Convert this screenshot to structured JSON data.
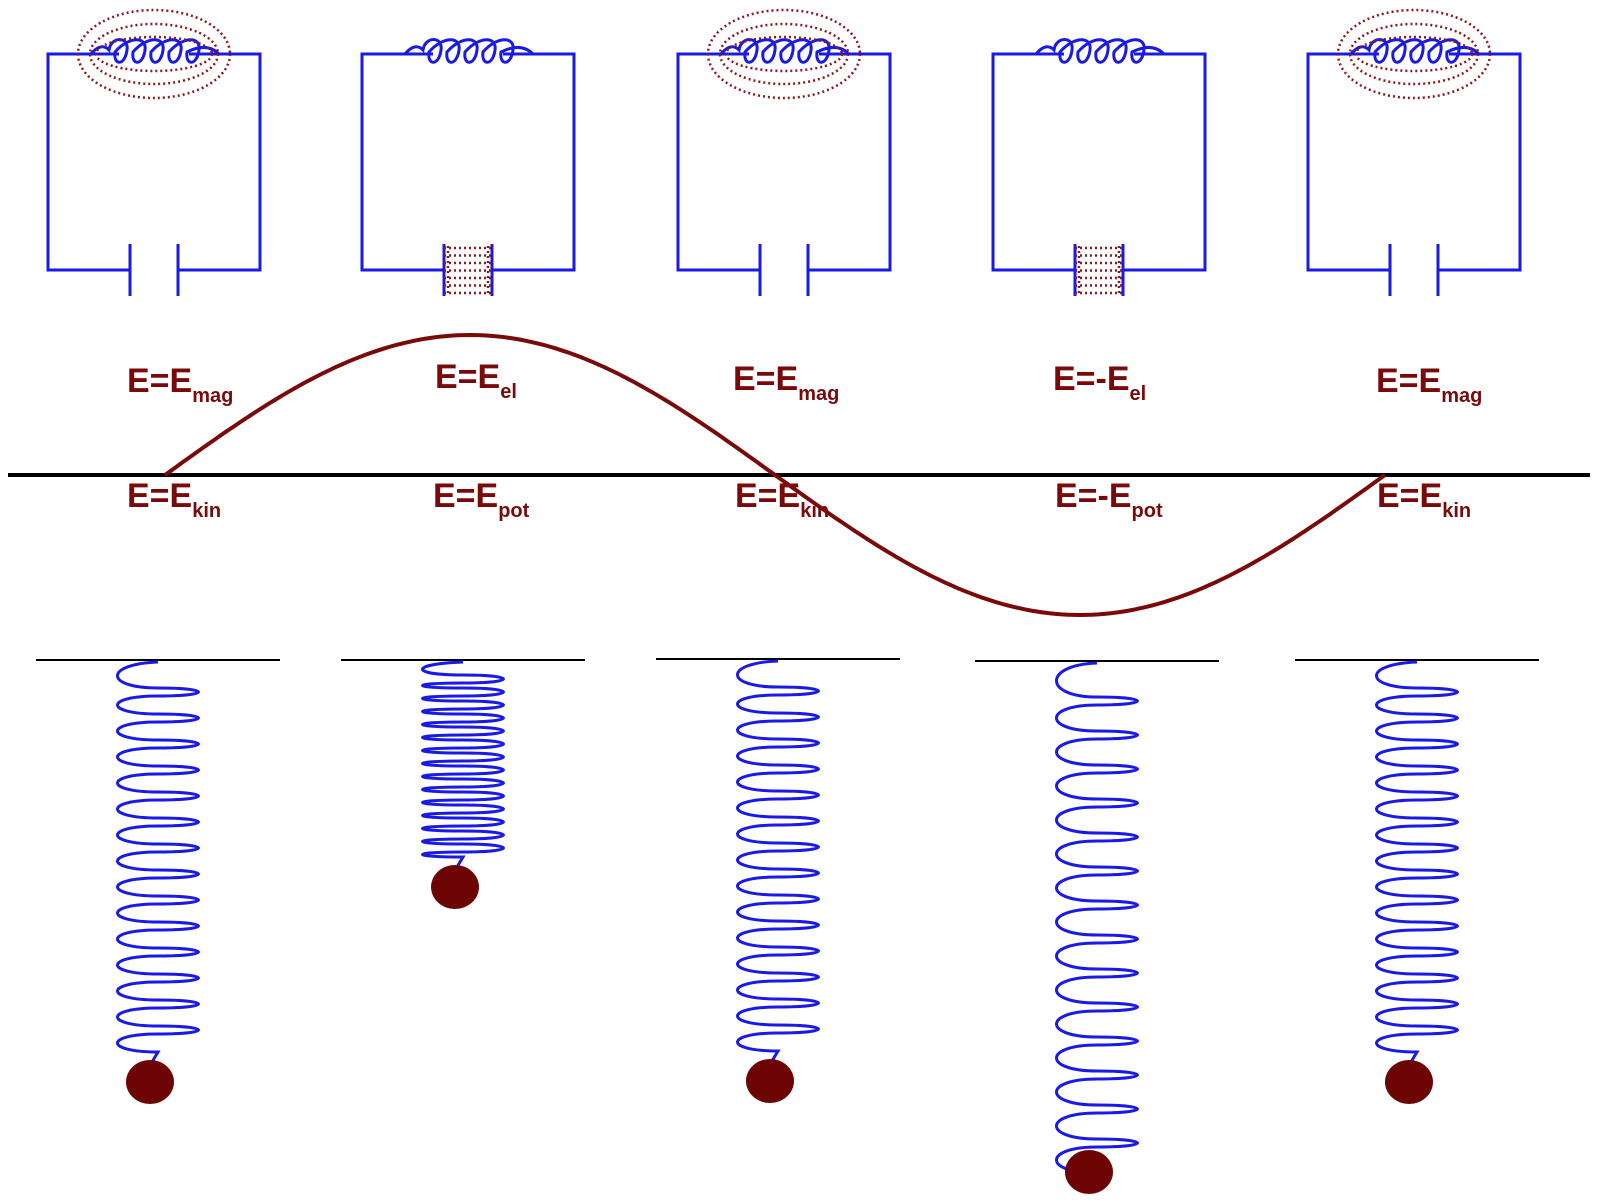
{
  "colors": {
    "wire": "#1a1ae6",
    "field": "#8b1a1a",
    "wave": "#7a0a0a",
    "label": "#7a0a0a",
    "mass": "#6e0505",
    "axis": "#000000"
  },
  "phases": [
    {
      "circuit_state": "current-max",
      "magnetic_field_shown": true,
      "electric_field_shown": false,
      "upper_label": {
        "main": "E=E",
        "sub": "mag"
      },
      "lower_label": {
        "main": "E=E",
        "sub": "kin"
      },
      "spring_state": "equilibrium"
    },
    {
      "circuit_state": "capacitor-charged",
      "magnetic_field_shown": false,
      "electric_field_shown": true,
      "upper_label": {
        "main": "E=E",
        "sub": "el"
      },
      "lower_label": {
        "main": "E=E",
        "sub": "pot"
      },
      "spring_state": "compressed"
    },
    {
      "circuit_state": "current-max",
      "magnetic_field_shown": true,
      "electric_field_shown": false,
      "upper_label": {
        "main": "E=E",
        "sub": "mag"
      },
      "lower_label": {
        "main": "E=E",
        "sub": "kin"
      },
      "spring_state": "equilibrium"
    },
    {
      "circuit_state": "capacitor-charged",
      "magnetic_field_shown": false,
      "electric_field_shown": true,
      "upper_label": {
        "main": "E=-E",
        "sub": "el"
      },
      "lower_label": {
        "main": "E=-E",
        "sub": "pot"
      },
      "spring_state": "stretched"
    },
    {
      "circuit_state": "current-max",
      "magnetic_field_shown": true,
      "electric_field_shown": false,
      "upper_label": {
        "main": "E=E",
        "sub": "mag"
      },
      "lower_label": {
        "main": "E=E",
        "sub": "kin"
      },
      "spring_state": "equilibrium"
    }
  ]
}
